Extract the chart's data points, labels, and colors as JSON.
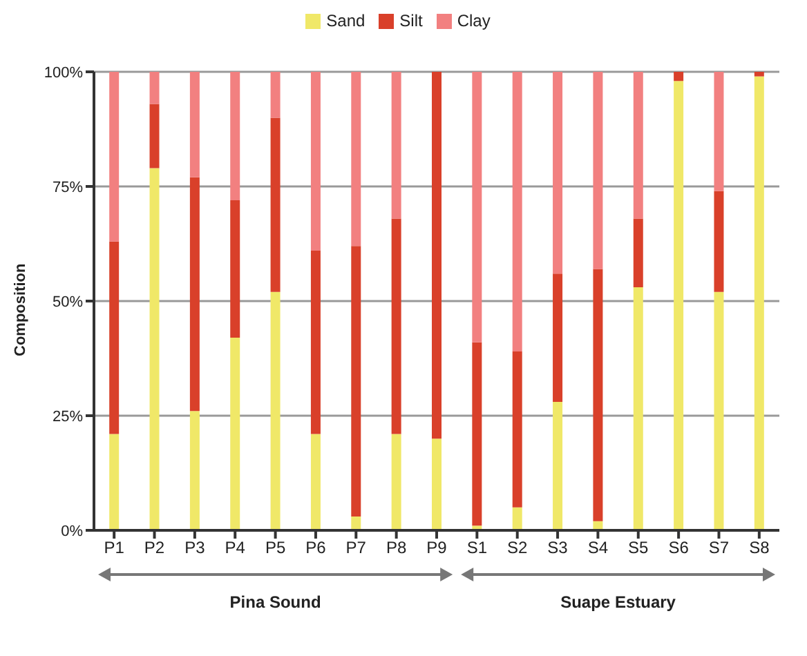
{
  "chart_data": {
    "type": "bar",
    "stacked": true,
    "ylabel": "Composition",
    "categories": [
      "P1",
      "P2",
      "P3",
      "P4",
      "P5",
      "P6",
      "P7",
      "P8",
      "P9",
      "S1",
      "S2",
      "S3",
      "S4",
      "S5",
      "S6",
      "S7",
      "S8"
    ],
    "series": [
      {
        "name": "Sand",
        "color": "#f0e868",
        "values": [
          21,
          79,
          26,
          42,
          52,
          21,
          3,
          21,
          20,
          1,
          5,
          28,
          2,
          53,
          98,
          52,
          99
        ]
      },
      {
        "name": "Silt",
        "color": "#d9402a",
        "values": [
          42,
          14,
          51,
          30,
          38,
          40,
          59,
          47,
          80,
          40,
          34,
          28,
          55,
          15,
          2,
          22,
          1
        ]
      },
      {
        "name": "Clay",
        "color": "#f28080",
        "values": [
          37,
          7,
          23,
          28,
          10,
          39,
          38,
          32,
          0,
          59,
          61,
          44,
          43,
          32,
          0,
          26,
          0
        ]
      }
    ],
    "ylim": [
      0,
      100
    ],
    "yticks": [
      {
        "value": 0,
        "label": "0%"
      },
      {
        "value": 25,
        "label": "25%"
      },
      {
        "value": 50,
        "label": "50%"
      },
      {
        "value": 75,
        "label": "75%"
      },
      {
        "value": 100,
        "label": "100%"
      }
    ],
    "grid": "y",
    "legend": "top",
    "annotations": [
      "Pina Sound",
      "Suape Estuary"
    ]
  }
}
